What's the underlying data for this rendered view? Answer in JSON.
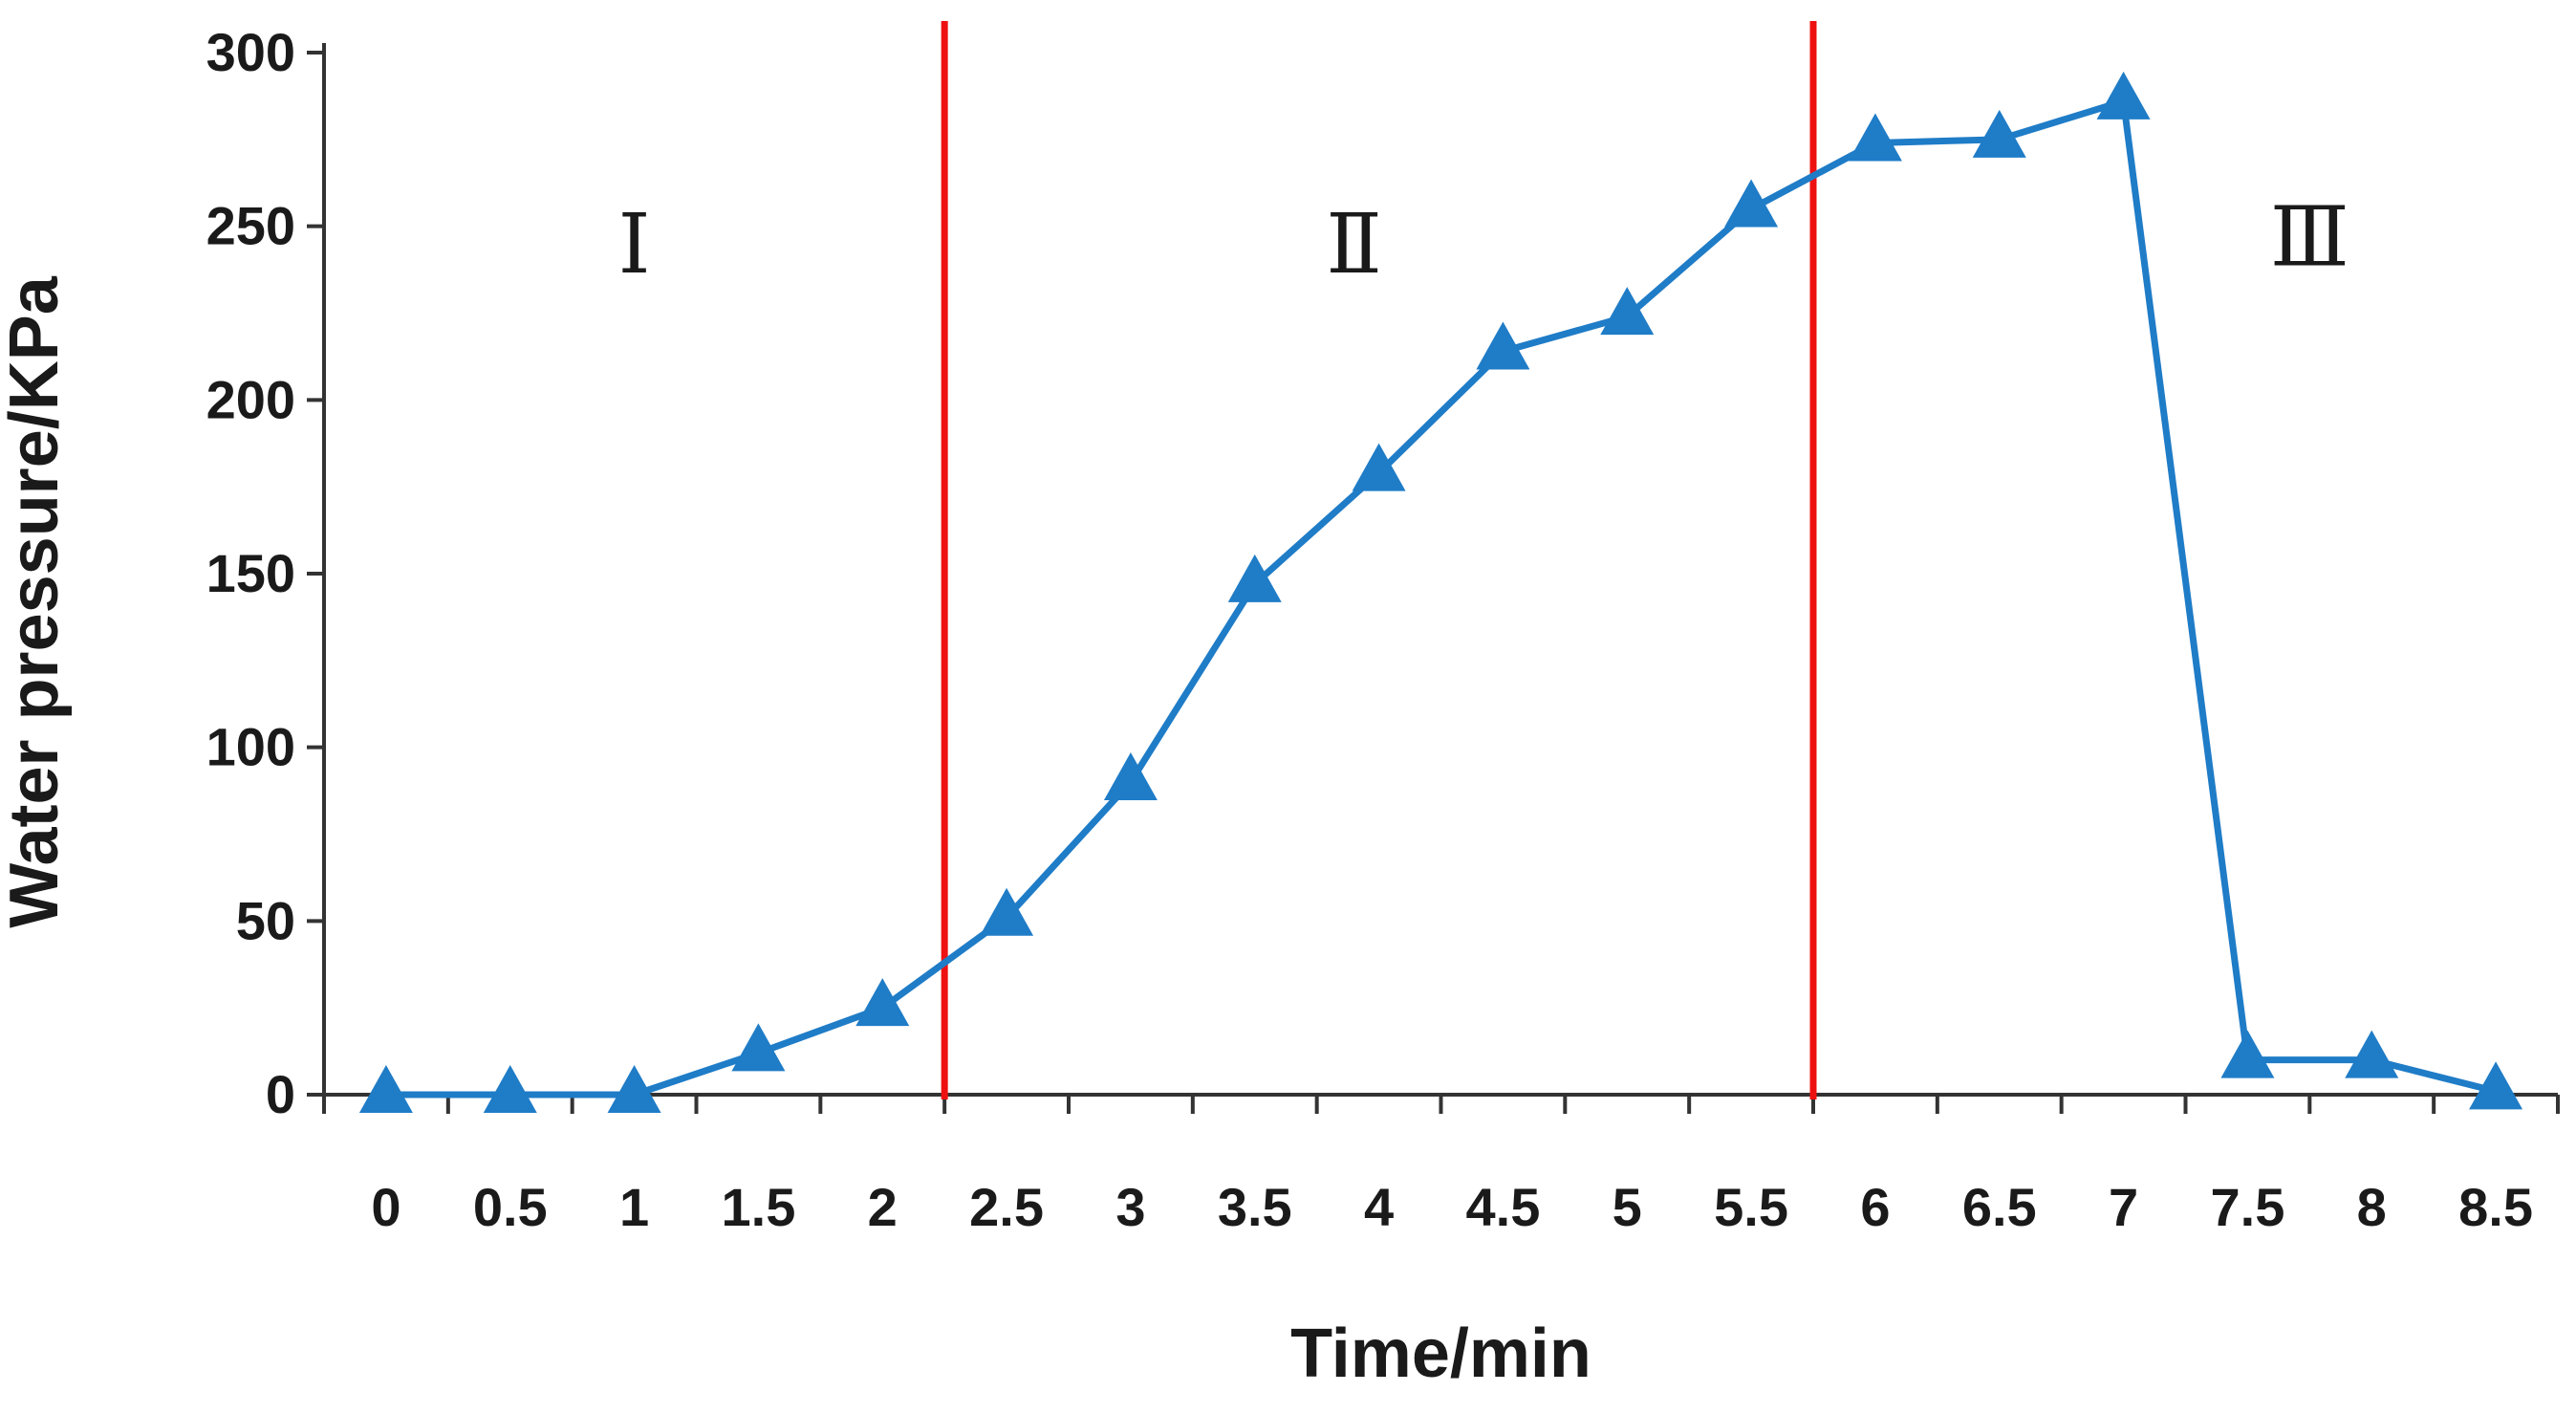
{
  "chart_data": {
    "type": "line",
    "title": "",
    "xlabel": "Time/min",
    "ylabel": "Water pressure/KPa",
    "categories": [
      "0",
      "0.5",
      "1",
      "1.5",
      "2",
      "2.5",
      "3",
      "3.5",
      "4",
      "4.5",
      "5",
      "5.5",
      "6",
      "6.5",
      "7",
      "7.5",
      "8",
      "8.5"
    ],
    "y_ticks": [
      "0",
      "50",
      "100",
      "150",
      "200",
      "250",
      "300"
    ],
    "ylim": [
      0,
      300
    ],
    "grid": false,
    "series": [
      {
        "values": [
          0,
          0,
          0,
          12,
          25,
          51,
          90,
          147,
          179,
          214,
          224,
          255,
          274,
          275,
          286,
          10,
          10,
          1
        ],
        "color": "#1f7cc7",
        "marker": "triangle"
      }
    ],
    "dividers": [
      {
        "x": 2.25,
        "color": "#ee1111"
      },
      {
        "x": 5.75,
        "color": "#ee1111"
      }
    ],
    "phase_labels": [
      {
        "text": "Ⅰ",
        "x": 1.0,
        "y": 245
      },
      {
        "text": "Ⅱ",
        "x": 3.9,
        "y": 245
      },
      {
        "text": "Ⅲ",
        "x": 7.75,
        "y": 247
      }
    ]
  }
}
